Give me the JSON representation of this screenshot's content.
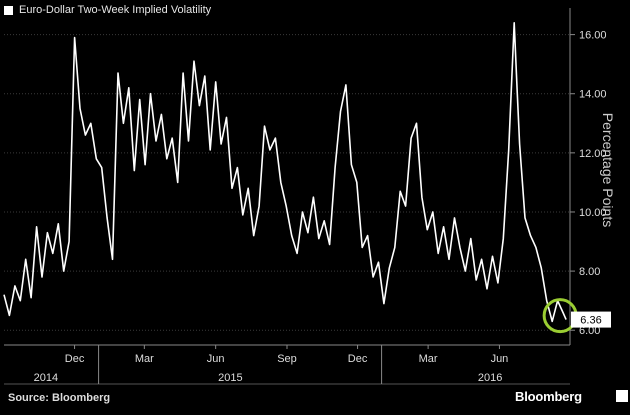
{
  "legend": {
    "label": "Euro-Dollar Two-Week Implied Volatility"
  },
  "footer": {
    "source": "Source: Bloomberg",
    "brand": "Bloomberg"
  },
  "chart_data": {
    "type": "line",
    "ylabel": "Percentage Points",
    "y_ticks": [
      {
        "value": 6,
        "label": "6.00"
      },
      {
        "value": 8,
        "label": "8.00"
      },
      {
        "value": 10,
        "label": "10.00"
      },
      {
        "value": 12,
        "label": "12.00"
      },
      {
        "value": 14,
        "label": "14.00"
      },
      {
        "value": 16,
        "label": "16.00"
      }
    ],
    "ylim": [
      5.5,
      16.9
    ],
    "xlim": [
      "2014-09-01",
      "2016-08-31"
    ],
    "month_ticks": [
      {
        "date": "2014-12-01",
        "label": "Dec"
      },
      {
        "date": "2015-03-01",
        "label": "Mar"
      },
      {
        "date": "2015-06-01",
        "label": "Jun"
      },
      {
        "date": "2015-09-01",
        "label": "Sep"
      },
      {
        "date": "2015-12-01",
        "label": "Dec"
      },
      {
        "date": "2016-03-01",
        "label": "Mar"
      },
      {
        "date": "2016-06-01",
        "label": "Jun"
      }
    ],
    "year_labels": [
      {
        "date": "2014-10-25",
        "label": "2014"
      },
      {
        "date": "2015-06-20",
        "label": "2015"
      },
      {
        "date": "2016-05-20",
        "label": "2016"
      }
    ],
    "year_dividers": [
      "2015-01-01",
      "2016-01-01"
    ],
    "last_value_label": "6.36",
    "highlight_color": "#9acd32",
    "series": [
      {
        "line_color": "#ffffff",
        "x": [
          "2014-09-01",
          "2014-09-08",
          "2014-09-15",
          "2014-09-22",
          "2014-09-29",
          "2014-10-06",
          "2014-10-13",
          "2014-10-20",
          "2014-10-27",
          "2014-11-03",
          "2014-11-10",
          "2014-11-17",
          "2014-11-24",
          "2014-12-01",
          "2014-12-08",
          "2014-12-15",
          "2014-12-22",
          "2014-12-29",
          "2015-01-05",
          "2015-01-12",
          "2015-01-19",
          "2015-01-26",
          "2015-02-02",
          "2015-02-09",
          "2015-02-16",
          "2015-02-23",
          "2015-03-02",
          "2015-03-09",
          "2015-03-16",
          "2015-03-23",
          "2015-03-30",
          "2015-04-06",
          "2015-04-13",
          "2015-04-20",
          "2015-04-27",
          "2015-05-04",
          "2015-05-11",
          "2015-05-18",
          "2015-05-25",
          "2015-06-01",
          "2015-06-08",
          "2015-06-15",
          "2015-06-22",
          "2015-06-29",
          "2015-07-06",
          "2015-07-13",
          "2015-07-20",
          "2015-07-27",
          "2015-08-03",
          "2015-08-10",
          "2015-08-17",
          "2015-08-24",
          "2015-08-31",
          "2015-09-07",
          "2015-09-14",
          "2015-09-21",
          "2015-09-28",
          "2015-10-05",
          "2015-10-12",
          "2015-10-19",
          "2015-10-26",
          "2015-11-02",
          "2015-11-09",
          "2015-11-16",
          "2015-11-23",
          "2015-11-30",
          "2015-12-07",
          "2015-12-14",
          "2015-12-21",
          "2015-12-28",
          "2016-01-04",
          "2016-01-11",
          "2016-01-18",
          "2016-01-25",
          "2016-02-01",
          "2016-02-08",
          "2016-02-15",
          "2016-02-22",
          "2016-02-29",
          "2016-03-07",
          "2016-03-14",
          "2016-03-21",
          "2016-03-28",
          "2016-04-04",
          "2016-04-11",
          "2016-04-18",
          "2016-04-25",
          "2016-05-02",
          "2016-05-09",
          "2016-05-16",
          "2016-05-23",
          "2016-05-30",
          "2016-06-06",
          "2016-06-13",
          "2016-06-20",
          "2016-06-24",
          "2016-06-27",
          "2016-07-04",
          "2016-07-11",
          "2016-07-18",
          "2016-07-25",
          "2016-08-01",
          "2016-08-08",
          "2016-08-15",
          "2016-08-22",
          "2016-08-26"
        ],
        "y": [
          7.2,
          6.5,
          7.5,
          7.0,
          8.4,
          7.1,
          9.5,
          7.8,
          9.3,
          8.6,
          9.6,
          8.0,
          9.0,
          15.9,
          13.5,
          12.6,
          13.0,
          11.8,
          11.5,
          9.8,
          8.4,
          14.7,
          13.0,
          14.2,
          11.4,
          13.8,
          11.6,
          14.0,
          12.4,
          13.3,
          11.8,
          12.5,
          11.0,
          14.7,
          12.4,
          15.1,
          13.6,
          14.6,
          12.1,
          14.4,
          12.3,
          13.2,
          10.8,
          11.5,
          9.9,
          10.8,
          9.2,
          10.2,
          12.9,
          12.1,
          12.5,
          11.0,
          10.2,
          9.2,
          8.6,
          10.0,
          9.3,
          10.5,
          9.1,
          9.7,
          8.9,
          11.5,
          13.4,
          14.3,
          11.6,
          11.0,
          8.8,
          9.2,
          7.8,
          8.3,
          6.9,
          8.1,
          8.8,
          10.7,
          10.2,
          12.5,
          13.0,
          10.5,
          9.4,
          10.0,
          8.6,
          9.5,
          8.4,
          9.8,
          8.8,
          8.0,
          9.1,
          7.7,
          8.4,
          7.4,
          8.5,
          7.6,
          9.1,
          12.1,
          16.4,
          14.0,
          12.3,
          9.8,
          9.2,
          8.8,
          8.1,
          7.0,
          6.3,
          7.0,
          6.6,
          6.36
        ]
      }
    ]
  }
}
